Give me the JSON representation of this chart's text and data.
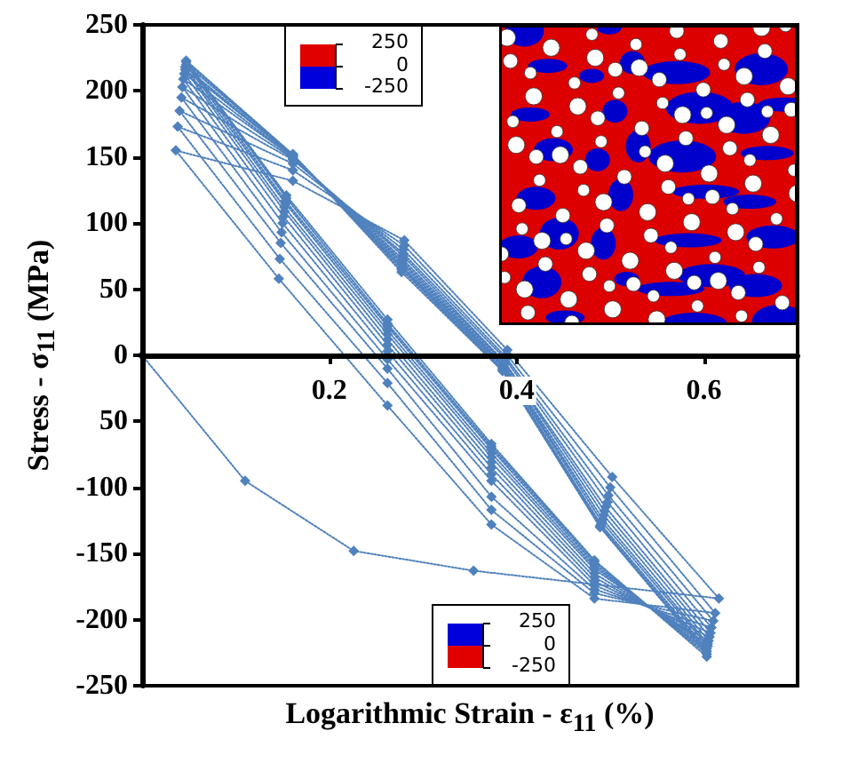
{
  "chart_data": {
    "type": "line",
    "xlabel": "Logarithmic Strain - ε$_{11}$ (%)",
    "ylabel": "Stress - σ$_{11}$ (MPa)",
    "annotations": [
      "250",
      "0",
      "-250",
      "250",
      "0",
      "-250"
    ],
    "xlim": [
      0,
      0.7
    ],
    "xticks": [
      0.2,
      0.4,
      0.6
    ],
    "ylim": [
      -250,
      250
    ],
    "yticks": [
      -250,
      -200,
      -150,
      -100,
      {
        "value": -50,
        "label": "50"
      },
      0,
      50,
      100,
      150,
      200,
      250
    ],
    "marker": "diamond",
    "line_style": "dotted",
    "series": [
      {
        "color": "#4f81bd",
        "x": [
          0,
          0.11,
          0.226,
          0.354,
          0.616,
          0.502,
          0.39,
          0.28,
          0.161,
          0.036,
          0.146,
          0.262,
          0.373,
          0.483,
          0.612,
          0.5,
          0.389,
          0.28,
          0.161,
          0.038,
          0.147,
          0.262,
          0.373,
          0.483,
          0.61,
          0.498,
          0.388,
          0.279,
          0.161,
          0.04,
          0.148,
          0.262,
          0.373,
          0.483,
          0.608,
          0.497,
          0.388,
          0.279,
          0.161,
          0.042,
          0.149,
          0.262,
          0.373,
          0.483,
          0.607,
          0.495,
          0.387,
          0.279,
          0.161,
          0.043,
          0.15,
          0.262,
          0.373,
          0.483,
          0.606,
          0.494,
          0.387,
          0.278,
          0.161,
          0.044,
          0.151,
          0.262,
          0.373,
          0.483,
          0.605,
          0.493,
          0.386,
          0.278,
          0.161,
          0.045,
          0.152,
          0.262,
          0.373,
          0.483,
          0.604,
          0.492,
          0.386,
          0.278,
          0.161,
          0.046,
          0.152,
          0.262,
          0.373,
          0.483,
          0.604,
          0.491,
          0.386,
          0.278,
          0.161,
          0.046,
          0.153,
          0.262,
          0.373,
          0.483,
          0.603,
          0.49,
          0.385,
          0.278,
          0.161,
          0.047,
          0.153,
          0.262,
          0.373,
          0.483,
          0.603,
          0.489,
          0.385,
          0.277,
          0.161,
          0.047,
          0.154,
          0.262,
          0.373,
          0.483,
          0.603,
          0.489,
          0.385,
          0.277,
          0.161,
          0.047,
          0.154,
          0.262,
          0.373,
          0.483,
          0.603
        ],
        "values": [
          0,
          -95,
          -148,
          -163,
          -184,
          -92,
          4,
          87,
          132,
          155,
          58,
          -38,
          -128,
          -184,
          -195,
          -100,
          1,
          83,
          140,
          173,
          73,
          -21,
          -117,
          -180,
          -201,
          -106,
          -1,
          80,
          145,
          185,
          85,
          -10,
          -107,
          -177,
          -206,
          -111,
          -3,
          77,
          148,
          195,
          93,
          -3,
          -95,
          -174,
          -210,
          -115,
          -5,
          75,
          149,
          203,
          100,
          3,
          -90,
          -171,
          -213,
          -118,
          -6,
          73,
          150,
          209,
          105,
          8,
          -85,
          -168,
          -216,
          -121,
          -7,
          71,
          150,
          213,
          109,
          12,
          -81,
          -165,
          -218,
          -124,
          -8,
          69,
          151,
          216,
          112,
          16,
          -77,
          -162,
          -220,
          -126,
          -9,
          67,
          151,
          218,
          115,
          19,
          -74,
          -160,
          -222,
          -128,
          -10,
          66,
          152,
          220,
          117,
          22,
          -71,
          -158,
          -224,
          -129,
          -11,
          65,
          152,
          222,
          119,
          24,
          -69,
          -156,
          -226,
          -130,
          -12,
          63,
          152,
          223,
          121,
          27,
          -67,
          -155,
          -228
        ]
      }
    ]
  }
}
